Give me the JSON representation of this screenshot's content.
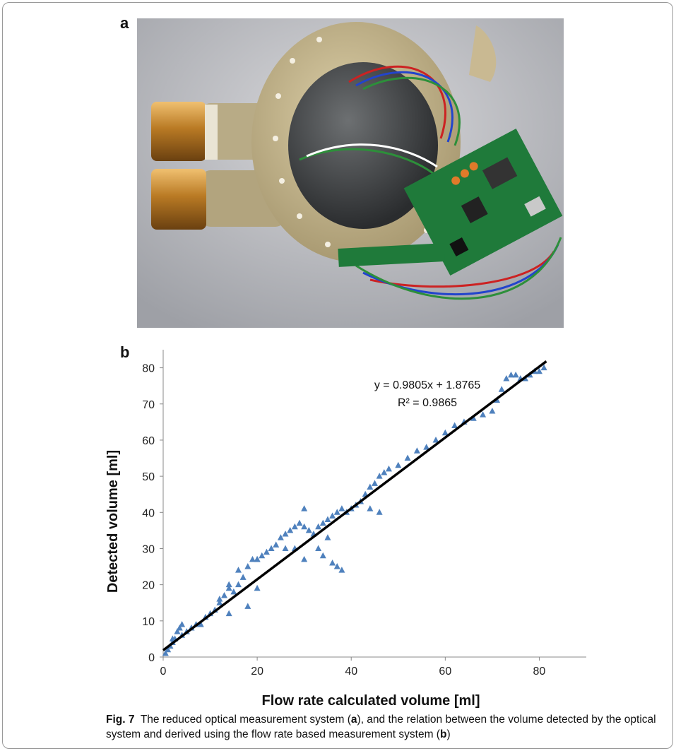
{
  "panel_labels": {
    "a": "a",
    "b": "b"
  },
  "photo": {
    "subject": "reduced optical measurement system device photo"
  },
  "chart_data": {
    "type": "scatter",
    "title": "",
    "xlabel": "Flow rate calculated volume [ml]",
    "ylabel": "Detected volume [ml]",
    "xlim": [
      0,
      90
    ],
    "ylim": [
      0,
      85
    ],
    "xticks": [
      0,
      20,
      40,
      60,
      80
    ],
    "yticks": [
      0,
      10,
      20,
      30,
      40,
      50,
      60,
      70,
      80
    ],
    "grid": false,
    "marker": "triangle",
    "series_color": "#4f81bd",
    "trendline": {
      "slope": 0.9805,
      "intercept": 1.8765,
      "color": "#000000"
    },
    "annotations": [
      "y = 0.9805x + 1.8765",
      "R² = 0.9865"
    ],
    "series": [
      {
        "x": [
          0.5,
          1,
          1.5,
          2,
          2.5,
          3,
          3.5,
          4,
          5,
          6,
          7,
          8,
          9,
          10,
          11,
          12,
          13,
          14,
          15,
          16,
          17,
          18,
          19,
          20,
          21,
          22,
          23,
          24,
          25,
          26,
          27,
          28,
          29,
          30,
          31,
          32,
          33,
          34,
          35,
          36,
          37,
          38,
          39,
          40,
          41,
          42,
          43,
          44,
          45,
          46,
          47,
          48,
          50,
          52,
          54,
          56,
          58,
          60,
          62,
          64,
          66,
          68,
          70,
          71,
          72,
          73,
          74,
          75,
          76,
          77,
          78,
          79,
          80,
          81,
          2,
          4,
          6,
          12,
          14,
          18,
          20,
          28,
          30,
          34,
          36,
          37,
          38,
          44,
          46,
          14,
          16,
          20,
          26,
          30,
          33,
          35
        ],
        "y": [
          1,
          2,
          3,
          4,
          5,
          7,
          8,
          6,
          7,
          8,
          9,
          9,
          11,
          12,
          13,
          15,
          17,
          19,
          18,
          20,
          22,
          25,
          27,
          27,
          28,
          29,
          30,
          31,
          33,
          34,
          35,
          36,
          37,
          36,
          35,
          34,
          36,
          37,
          38,
          39,
          40,
          41,
          40,
          41,
          42,
          43,
          45,
          47,
          48,
          50,
          51,
          52,
          53,
          55,
          57,
          58,
          60,
          62,
          64,
          65,
          66,
          67,
          68,
          71,
          74,
          77,
          78,
          78,
          77,
          77,
          78,
          79,
          79,
          80,
          5,
          9,
          8,
          16,
          12,
          14,
          19,
          30,
          27,
          28,
          26,
          25,
          24,
          41,
          40,
          20,
          24,
          27,
          30,
          41,
          30,
          33
        ]
      }
    ]
  },
  "caption": {
    "prefix": "Fig. 7",
    "part1": "The reduced optical measurement system (",
    "a": "a",
    "part2": "), and the relation between the volume detected by the optical system and derived using the flow rate based measurement system (",
    "b": "b",
    "part3": ")"
  }
}
